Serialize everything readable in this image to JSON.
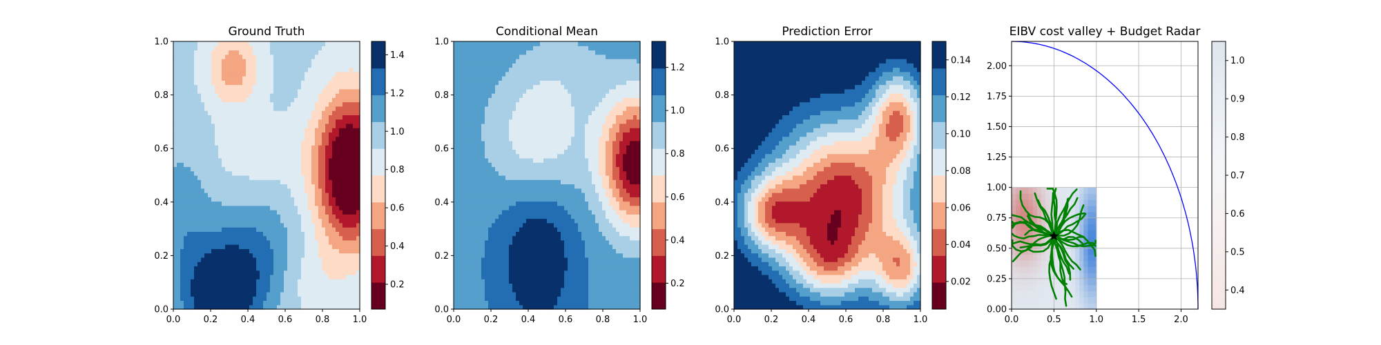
{
  "chart_data": [
    {
      "type": "heatmap",
      "title": "Ground Truth",
      "xlabel": "",
      "ylabel": "",
      "xlim": [
        0,
        1
      ],
      "ylim": [
        0,
        1
      ],
      "xticks": [
        "0.0",
        "0.2",
        "0.4",
        "0.6",
        "0.8",
        "1.0"
      ],
      "yticks": [
        "0.0",
        "0.2",
        "0.4",
        "0.6",
        "0.8",
        "1.0"
      ],
      "colormap": "RdBu",
      "colorbar": {
        "min": 0.07,
        "max": 1.47,
        "levels": 10,
        "ticks": [
          "0.2",
          "0.4",
          "0.6",
          "0.8",
          "1.0",
          "1.2",
          "1.4"
        ],
        "tick_values": [
          0.2,
          0.4,
          0.6,
          0.8,
          1.0,
          1.2,
          1.4
        ]
      },
      "field": {
        "base": 0.95,
        "bumps": [
          {
            "x": 0.95,
            "y": 0.52,
            "amp": -1.05,
            "sx": 0.13,
            "sy": 0.2
          },
          {
            "x": 0.32,
            "y": 0.9,
            "amp": -0.4,
            "sx": 0.1,
            "sy": 0.1
          },
          {
            "x": 0.45,
            "y": 0.58,
            "amp": -0.12,
            "sx": 0.2,
            "sy": 0.1
          },
          {
            "x": 0.25,
            "y": 0.05,
            "amp": 0.55,
            "sx": 0.14,
            "sy": 0.14
          },
          {
            "x": 0.45,
            "y": 0.2,
            "amp": 0.25,
            "sx": 0.15,
            "sy": 0.15
          },
          {
            "x": 0.05,
            "y": 0.35,
            "amp": 0.18,
            "sx": 0.12,
            "sy": 0.2
          },
          {
            "x": 0.75,
            "y": 0.1,
            "amp": -0.12,
            "sx": 0.12,
            "sy": 0.1
          }
        ]
      }
    },
    {
      "type": "heatmap",
      "title": "Conditional Mean",
      "xlabel": "",
      "ylabel": "",
      "xlim": [
        0,
        1
      ],
      "ylim": [
        0,
        1
      ],
      "xticks": [
        "0.0",
        "0.2",
        "0.4",
        "0.6",
        "0.8",
        "1.0"
      ],
      "yticks": [
        "0.0",
        "0.2",
        "0.4",
        "0.6",
        "0.8",
        "1.0"
      ],
      "colormap": "RdBu",
      "colorbar": {
        "min": 0.08,
        "max": 1.32,
        "levels": 10,
        "ticks": [
          "0.2",
          "0.4",
          "0.6",
          "0.8",
          "1.0",
          "1.2"
        ],
        "tick_values": [
          0.2,
          0.4,
          0.6,
          0.8,
          1.0,
          1.2
        ]
      },
      "field": {
        "base": 1.05,
        "bumps": [
          {
            "x": 0.98,
            "y": 0.55,
            "amp": -0.95,
            "sx": 0.13,
            "sy": 0.17
          },
          {
            "x": 0.45,
            "y": 0.65,
            "amp": -0.3,
            "sx": 0.2,
            "sy": 0.16
          },
          {
            "x": 0.45,
            "y": 0.18,
            "amp": 0.3,
            "sx": 0.13,
            "sy": 0.17
          },
          {
            "x": 0.6,
            "y": 0.9,
            "amp": -0.12,
            "sx": 0.2,
            "sy": 0.12
          }
        ]
      }
    },
    {
      "type": "heatmap",
      "title": "Prediction Error",
      "xlabel": "",
      "ylabel": "",
      "xlim": [
        0,
        1
      ],
      "ylim": [
        0,
        1
      ],
      "xticks": [
        "0.0",
        "0.2",
        "0.4",
        "0.6",
        "0.8",
        "1.0"
      ],
      "yticks": [
        "0.0",
        "0.2",
        "0.4",
        "0.6",
        "0.8",
        "1.0"
      ],
      "colormap": "RdBu",
      "colorbar": {
        "min": 0.005,
        "max": 0.15,
        "levels": 10,
        "ticks": [
          "0.02",
          "0.04",
          "0.06",
          "0.08",
          "0.10",
          "0.12",
          "0.14"
        ],
        "tick_values": [
          0.02,
          0.04,
          0.06,
          0.08,
          0.1,
          0.12,
          0.14
        ]
      },
      "field": {
        "base": 0.155,
        "bumps": [
          {
            "x": 0.58,
            "y": 0.42,
            "amp": -0.13,
            "sx": 0.25,
            "sy": 0.2
          },
          {
            "x": 0.88,
            "y": 0.72,
            "amp": -0.09,
            "sx": 0.1,
            "sy": 0.12
          },
          {
            "x": 0.2,
            "y": 0.36,
            "amp": -0.08,
            "sx": 0.12,
            "sy": 0.1
          },
          {
            "x": 0.9,
            "y": 0.15,
            "amp": -0.08,
            "sx": 0.1,
            "sy": 0.1
          },
          {
            "x": 0.5,
            "y": 0.18,
            "amp": -0.06,
            "sx": 0.14,
            "sy": 0.1
          }
        ]
      }
    },
    {
      "type": "heatmap",
      "title": "EIBV cost valley + Budget Radar",
      "xlabel": "",
      "ylabel": "",
      "xlim": [
        0,
        2.2
      ],
      "ylim": [
        0,
        2.2
      ],
      "xticks": [
        "0.0",
        "0.5",
        "1.0",
        "1.5",
        "2.0"
      ],
      "xtick_values": [
        0,
        0.5,
        1.0,
        1.5,
        2.0
      ],
      "yticks": [
        "0.00",
        "0.25",
        "0.50",
        "0.75",
        "1.00",
        "1.25",
        "1.50",
        "1.75",
        "2.00"
      ],
      "ytick_values": [
        0,
        0.25,
        0.5,
        0.75,
        1.0,
        1.25,
        1.5,
        1.75,
        2.0
      ],
      "grid": true,
      "colormap": "RdBu",
      "colorbar": {
        "min": 0.35,
        "max": 1.05,
        "ticks": [
          "0.4",
          "0.5",
          "0.6",
          "0.7",
          "0.8",
          "0.9",
          "1.0"
        ],
        "tick_values": [
          0.4,
          0.5,
          0.6,
          0.7,
          0.8,
          0.9,
          1.0
        ]
      },
      "cost_field_extent": [
        0,
        1,
        0,
        1
      ],
      "budget_radius": 2.2,
      "budget_circle_center": [
        0,
        0
      ],
      "current_location": [
        0.5,
        0.6
      ],
      "colors": {
        "budget_circle": "#0000ff",
        "paths": "#008000",
        "marker": "#000000"
      }
    }
  ]
}
